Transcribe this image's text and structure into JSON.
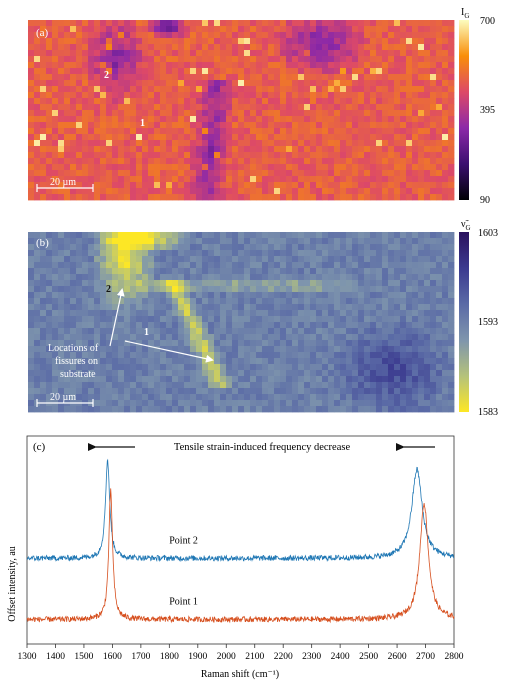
{
  "panel_a": {
    "label": "(a)",
    "colorbar_title": "I",
    "colorbar_sub": "G",
    "colorbar_ticks": [
      700,
      395,
      90
    ],
    "colorbar_range": [
      90,
      700
    ],
    "point_labels": [
      "2",
      "1"
    ],
    "scalebar_text": "20 µm",
    "colormap": [
      "#000004",
      "#3b0f70",
      "#8c29a8",
      "#dd4968",
      "#f98e09",
      "#fcfdbf"
    ]
  },
  "panel_b": {
    "label": "(b)",
    "colorbar_title": "ν̃",
    "colorbar_sub": "G",
    "colorbar_ticks": [
      1603,
      1593,
      1583
    ],
    "colorbar_range": [
      1583,
      1603
    ],
    "point_labels": [
      "2",
      "1"
    ],
    "annotation": [
      "Locations of",
      "fissures on",
      "substrate"
    ],
    "scalebar_text": "20 µm",
    "colormap": [
      "#fde725",
      "#b5c27a",
      "#7e95ad",
      "#5a6aa6",
      "#3b3a8f",
      "#2a115e"
    ]
  },
  "chart_data": {
    "type": "line",
    "panel_label": "(c)",
    "title": "Tensile strain-induced frequency decrease",
    "xlabel": "Raman shift (cm⁻¹)",
    "ylabel": "Offset intensity, au",
    "xlim": [
      1300,
      2800
    ],
    "x_ticks": [
      1300,
      1400,
      1500,
      1600,
      1700,
      1800,
      1900,
      2000,
      2100,
      2200,
      2300,
      2400,
      2500,
      2600,
      2700,
      2800
    ],
    "series": [
      {
        "name": "Point 2",
        "color": "#1f77b4",
        "baseline": 1.0,
        "peaks": [
          {
            "center": 1583,
            "height": 1.6,
            "width": 9
          },
          {
            "center": 2670,
            "height": 1.45,
            "width": 22
          }
        ]
      },
      {
        "name": "Point 1",
        "color": "#d64f1e",
        "baseline": 0.0,
        "peaks": [
          {
            "center": 1594,
            "height": 2.1,
            "width": 8
          },
          {
            "center": 2695,
            "height": 1.9,
            "width": 18
          }
        ]
      }
    ],
    "arrows": [
      "left",
      "left"
    ]
  }
}
